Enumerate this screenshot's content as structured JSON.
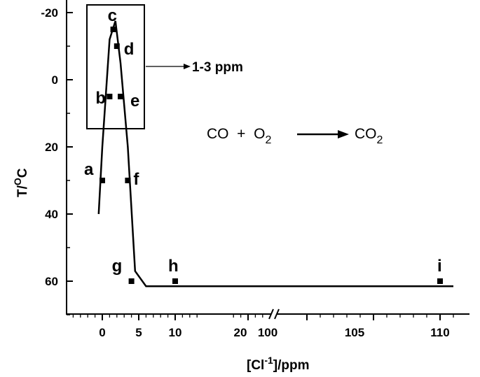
{
  "chart_data": {
    "type": "scatter",
    "title": "",
    "xlabel": "[Cl",
    "xlabel_sup": "-1",
    "xlabel_suffix": "]/ppm",
    "ylabel": "T/",
    "ylabel_sup": "O",
    "ylabel_suffix": "C",
    "y_inverted": true,
    "ylim": [
      -20,
      70
    ],
    "y_ticks": [
      "-20",
      "0",
      "20",
      "40",
      "60"
    ],
    "x_ticks": [
      "0",
      "5",
      "10",
      "20",
      "100",
      "105",
      "110"
    ],
    "x_breaks": [
      "10-20",
      "20-100"
    ],
    "x_ranges": [
      [
        -5,
        25
      ],
      [
        100,
        111
      ]
    ],
    "series": [
      {
        "points": [
          {
            "label": "a",
            "x": 0,
            "y": 30
          },
          {
            "label": "b",
            "x": 1,
            "y": 5
          },
          {
            "label": "c",
            "x": 1.5,
            "y": -15
          },
          {
            "label": "d",
            "x": 2,
            "y": -10
          },
          {
            "label": "e",
            "x": 2.5,
            "y": 5
          },
          {
            "label": "f",
            "x": 3.5,
            "y": 30
          },
          {
            "label": "g",
            "x": 4,
            "y": 60
          },
          {
            "label": "h",
            "x": 10,
            "y": 60
          },
          {
            "label": "i",
            "x": 110,
            "y": 60
          }
        ]
      }
    ],
    "fit_line": [
      [
        -0.5,
        40
      ],
      [
        0,
        20
      ],
      [
        1,
        -12
      ],
      [
        1.8,
        -17.5
      ],
      [
        2.5,
        -5
      ],
      [
        3.5,
        20
      ],
      [
        4.5,
        57
      ],
      [
        6,
        61.5
      ],
      [
        111,
        61.5
      ]
    ],
    "annotation": "1-3 ppm",
    "reaction": {
      "lhs": "CO  +  O",
      "lhs_sub": "2",
      "rhs": "CO",
      "rhs_sub": "2"
    }
  }
}
